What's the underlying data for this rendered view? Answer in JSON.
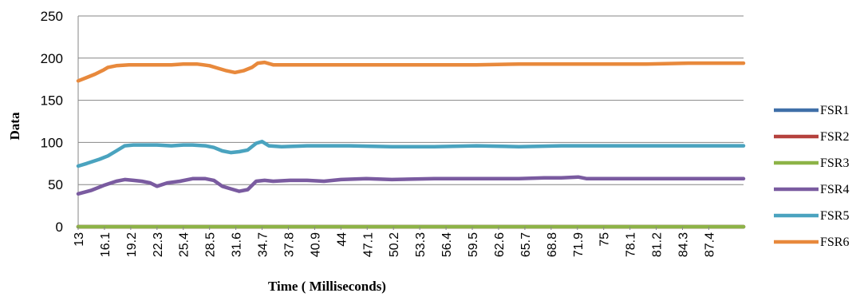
{
  "chart_data": {
    "type": "line",
    "xlabel": "Time ( Milliseconds)",
    "ylabel": "Data",
    "ylim": [
      0,
      250
    ],
    "yticks": [
      0,
      50,
      100,
      150,
      200,
      250
    ],
    "x_tick_labels": [
      "13",
      "16.1",
      "19.2",
      "22.3",
      "25.4",
      "28.5",
      "31.6",
      "34.7",
      "37.8",
      "40.9",
      "44",
      "47.1",
      "50.2",
      "53.3",
      "56.4",
      "59.5",
      "62.6",
      "65.7",
      "68.8",
      "71.9",
      "75",
      "78.1",
      "81.2",
      "84.3",
      "87.4"
    ],
    "xlim": [
      13,
      91.5
    ],
    "grid": "horizontal",
    "legend_position": "right",
    "series": [
      {
        "name": "FSR1",
        "color": "#3F6FA8",
        "x": [
          13,
          91.5
        ],
        "values": [
          0,
          0
        ]
      },
      {
        "name": "FSR2",
        "color": "#B5413D",
        "x": [
          13,
          91.5
        ],
        "values": [
          0,
          0
        ]
      },
      {
        "name": "FSR3",
        "color": "#8DB347",
        "x": [
          13,
          91.5
        ],
        "values": [
          0,
          0
        ]
      },
      {
        "name": "FSR4",
        "color": "#7A5BA0",
        "x": [
          13,
          14.5,
          16,
          17.5,
          18.5,
          19.5,
          20.5,
          21.5,
          22.3,
          23.5,
          25,
          26.5,
          28,
          29,
          30,
          31,
          32,
          33,
          34,
          35,
          36,
          38,
          40,
          42,
          44,
          47,
          50,
          55,
          60,
          65,
          68,
          70,
          72,
          73,
          75,
          80,
          85,
          91.5
        ],
        "values": [
          39,
          43,
          49,
          54,
          56,
          55,
          54,
          52,
          48,
          52,
          54,
          57,
          57,
          55,
          48,
          45,
          42,
          44,
          54,
          55,
          54,
          55,
          55,
          54,
          56,
          57,
          56,
          57,
          57,
          57,
          58,
          58,
          59,
          57,
          57,
          57,
          57,
          57
        ]
      },
      {
        "name": "FSR5",
        "color": "#4AA3BF",
        "x": [
          13,
          14,
          15.5,
          16.5,
          17.5,
          18.5,
          19.5,
          20.5,
          22.3,
          24,
          25.4,
          26.5,
          28,
          29,
          30,
          31,
          32,
          33,
          34,
          34.7,
          35.5,
          37,
          40,
          45,
          50,
          55,
          60,
          65,
          70,
          75,
          80,
          85,
          91.5
        ],
        "values": [
          72,
          75,
          80,
          84,
          90,
          96,
          97,
          97,
          97,
          96,
          97,
          97,
          96,
          94,
          90,
          88,
          89,
          91,
          99,
          101,
          96,
          95,
          96,
          96,
          95,
          95,
          96,
          95,
          96,
          96,
          96,
          96,
          96
        ]
      },
      {
        "name": "FSR6",
        "color": "#E8893C",
        "x": [
          13,
          14,
          15,
          16,
          16.5,
          17.5,
          19,
          20.5,
          22.3,
          24,
          25.4,
          27,
          28.5,
          29.5,
          30.5,
          31.5,
          32.5,
          33.5,
          34.2,
          35,
          36,
          40,
          45,
          50,
          55,
          60,
          65,
          70,
          75,
          80,
          85,
          91.5
        ],
        "values": [
          173,
          177,
          181,
          186,
          189,
          191,
          192,
          192,
          192,
          192,
          193,
          193,
          191,
          188,
          185,
          183,
          185,
          189,
          194,
          195,
          192,
          192,
          192,
          192,
          192,
          192,
          193,
          193,
          193,
          193,
          194,
          194
        ]
      }
    ]
  }
}
